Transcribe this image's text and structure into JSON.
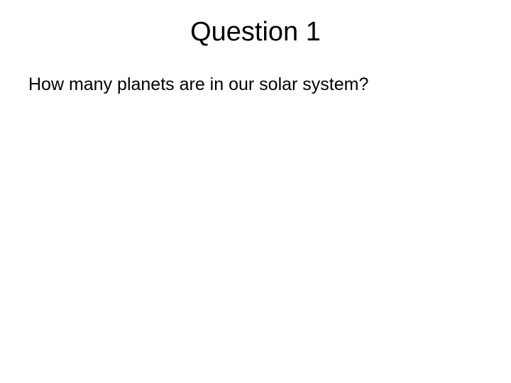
{
  "slide": {
    "title": "Question 1",
    "body": "How many planets are in our solar system?",
    "title_fontsize": 38,
    "body_fontsize": 25,
    "background_color": "#ffffff",
    "text_color": "#000000",
    "font_family": "Arial"
  }
}
